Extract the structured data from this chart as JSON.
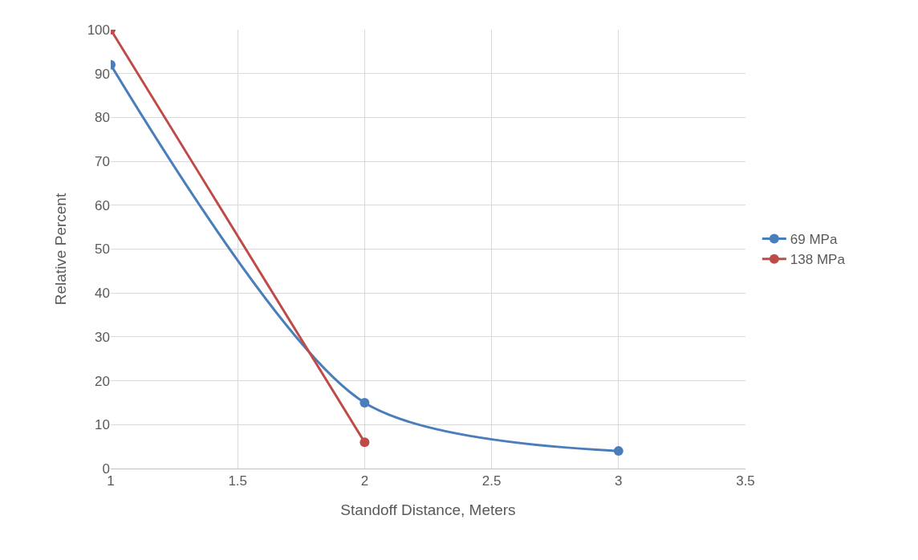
{
  "chart_data": {
    "type": "line",
    "xlabel": "Standoff Distance, Meters",
    "ylabel": "Relative Percent",
    "series": [
      {
        "name": "69 MPa",
        "color": "#4a7ebb",
        "x": [
          1,
          2,
          3
        ],
        "values": [
          92,
          15,
          4
        ]
      },
      {
        "name": "138 MPa",
        "color": "#be4b48",
        "x": [
          1,
          2
        ],
        "values": [
          100,
          6
        ]
      }
    ],
    "xlim": [
      1,
      3.5
    ],
    "xticks": [
      1,
      1.5,
      2,
      2.5,
      3,
      3.5
    ],
    "ylim": [
      0,
      100
    ],
    "yticks": [
      0,
      10,
      20,
      30,
      40,
      50,
      60,
      70,
      80,
      90,
      100
    ],
    "grid": true,
    "legend": "right",
    "marker": "circle",
    "line_style": "solid"
  }
}
